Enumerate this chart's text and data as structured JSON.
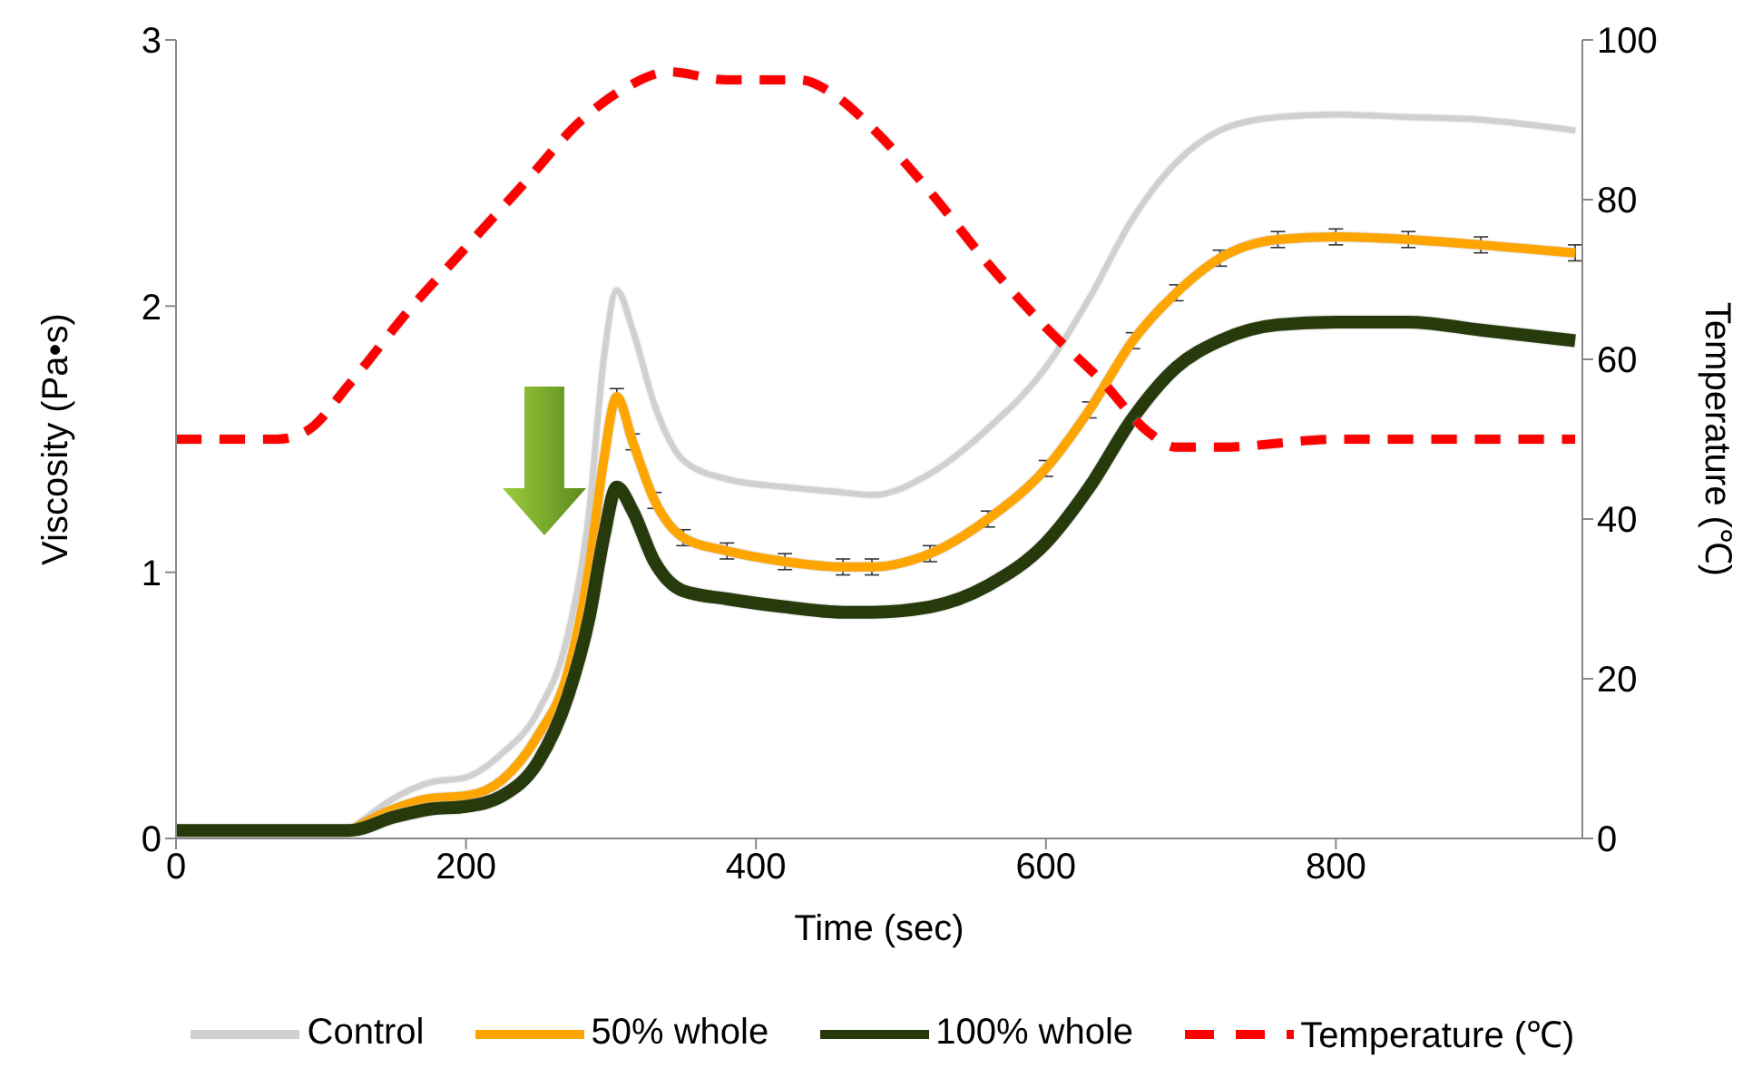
{
  "chart_data": {
    "type": "line",
    "xlabel": "Time (sec)",
    "ylabel": "Viscosity (Pa•s)",
    "y2label": "Temperature (℃)",
    "x": [
      0,
      50,
      100,
      120,
      150,
      175,
      200,
      225,
      250,
      270,
      285,
      295,
      304,
      315,
      330,
      350,
      380,
      420,
      460,
      480,
      520,
      560,
      600,
      630,
      660,
      690,
      720,
      760,
      800,
      850,
      900,
      965
    ],
    "series": [
      {
        "name": "Control",
        "color": "#d0d0d0",
        "values": [
          null,
          null,
          null,
          0.03,
          0.15,
          0.21,
          0.23,
          0.32,
          0.48,
          0.76,
          1.23,
          1.8,
          2.06,
          1.91,
          1.63,
          1.42,
          1.35,
          1.32,
          1.3,
          1.29,
          1.37,
          1.54,
          1.77,
          2.03,
          2.33,
          2.54,
          2.66,
          2.71,
          2.72,
          2.71,
          2.7,
          2.66
        ]
      },
      {
        "name": "50% whole",
        "color": "#ffa500",
        "values": [
          null,
          null,
          null,
          0.03,
          0.11,
          0.15,
          0.16,
          0.22,
          0.39,
          0.62,
          1.02,
          1.42,
          1.66,
          1.49,
          1.27,
          1.13,
          1.08,
          1.04,
          1.02,
          1.02,
          1.07,
          1.2,
          1.39,
          1.61,
          1.87,
          2.05,
          2.18,
          2.25,
          2.26,
          2.25,
          2.23,
          2.2
        ],
        "errors": [
          null,
          null,
          null,
          null,
          null,
          null,
          null,
          null,
          null,
          null,
          null,
          null,
          0.03,
          0.03,
          0.03,
          0.03,
          0.03,
          0.03,
          0.03,
          0.03,
          0.03,
          0.03,
          0.03,
          0.03,
          0.03,
          0.03,
          0.03,
          0.03,
          0.03,
          0.03,
          0.03,
          0.03
        ]
      },
      {
        "name": "100% whole",
        "color": "#263a0c",
        "values": [
          0.03,
          0.03,
          0.03,
          0.03,
          0.08,
          0.11,
          0.12,
          0.16,
          0.29,
          0.53,
          0.83,
          1.13,
          1.32,
          1.23,
          1.04,
          0.93,
          0.9,
          0.87,
          0.85,
          0.85,
          0.87,
          0.95,
          1.11,
          1.32,
          1.58,
          1.77,
          1.87,
          1.93,
          1.94,
          1.94,
          1.91,
          1.87
        ]
      },
      {
        "name": "Temperature (℃)",
        "color": "#ff0000",
        "axis": "y2",
        "line_style": "dashed",
        "x": [
          0,
          70,
          90,
          120,
          160,
          200,
          240,
          280,
          310,
          340,
          380,
          430,
          455,
          480,
          520,
          560,
          600,
          640,
          670,
          690,
          720,
          800,
          965
        ],
        "values": [
          50,
          50,
          51,
          57,
          66,
          74,
          82,
          90,
          94,
          96,
          95,
          95,
          93,
          89,
          81,
          72,
          64,
          57,
          51,
          49,
          49,
          50,
          50
        ]
      }
    ],
    "xlim": [
      0,
      970
    ],
    "xticks": [
      0,
      200,
      400,
      600,
      800
    ],
    "ylim": [
      0,
      3
    ],
    "yticks": [
      0,
      1,
      2,
      3
    ],
    "y2lim": [
      0,
      100
    ],
    "y2ticks": [
      0,
      20,
      40,
      60,
      80,
      100
    ],
    "marker": "none",
    "grid": false,
    "legend": "bottom"
  }
}
